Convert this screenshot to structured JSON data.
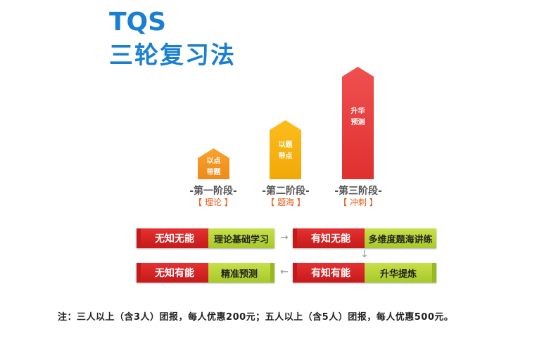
{
  "title": {
    "line1": "TQS",
    "line2": "三轮复习法"
  },
  "stages": [
    {
      "bar_label_l1": "以点",
      "bar_label_l2": "带题",
      "name": "-第一阶段-",
      "sub": "【 理论 】",
      "color": "#f39a22"
    },
    {
      "bar_label_l1": "以题",
      "bar_label_l2": "带点",
      "name": "-第二阶段-",
      "sub": "【 题海 】",
      "color": "#f7b40e"
    },
    {
      "bar_label_l1": "升华",
      "bar_label_l2": "预测",
      "name": "-第三阶段-",
      "sub": "【 冲刺 】",
      "color": "#e83c3c"
    }
  ],
  "flow": {
    "box1": {
      "left": "无知无能",
      "right": "理论基础学习"
    },
    "box2": {
      "left": "有知无能",
      "right": "多维度题海讲练"
    },
    "box3": {
      "left": "有知有能",
      "right": "升华提炼"
    },
    "box4": {
      "left": "无知有能",
      "right": "精准预测"
    },
    "arrow_right": "→",
    "arrow_down": "↓",
    "arrow_left": "←"
  },
  "note": "注：三人以上（含3人）团报，每人优惠200元；五人以上（含5人）团报，每人优惠500元。"
}
